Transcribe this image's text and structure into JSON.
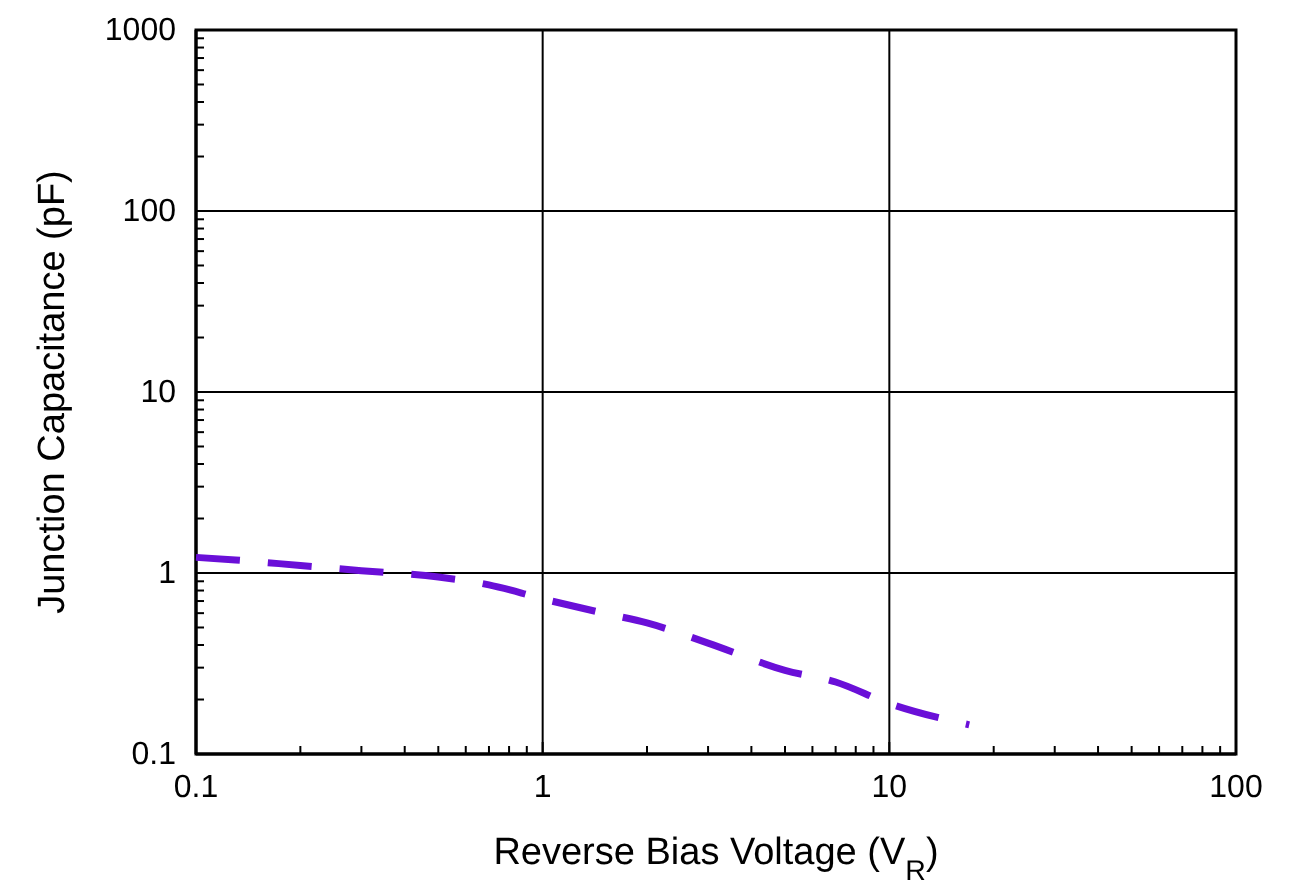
{
  "chart_data": {
    "type": "line",
    "xlabel": "Reverse Bias Voltage (V$_{R}$)",
    "ylabel": "Junction Capacitance (pF)",
    "log": "xy",
    "xlim": [
      0.1,
      100
    ],
    "xticks": [
      0.1,
      1,
      10,
      100
    ],
    "ylim": [
      0.1,
      1000
    ],
    "yticks": [
      0.1,
      1,
      10,
      100,
      1000
    ],
    "grid": true,
    "line_style": "dashed",
    "marker": "none",
    "series": [
      {
        "color": "#6a0fd8",
        "x": [
          0.1,
          0.13,
          0.2,
          0.3,
          0.5,
          0.7,
          1,
          1.5,
          2,
          3,
          5,
          7,
          10,
          17
        ],
        "values": [
          1.22,
          1.18,
          1.1,
          1.03,
          0.95,
          0.86,
          0.72,
          0.6,
          0.53,
          0.41,
          0.29,
          0.25,
          0.19,
          0.145
        ]
      }
    ]
  }
}
